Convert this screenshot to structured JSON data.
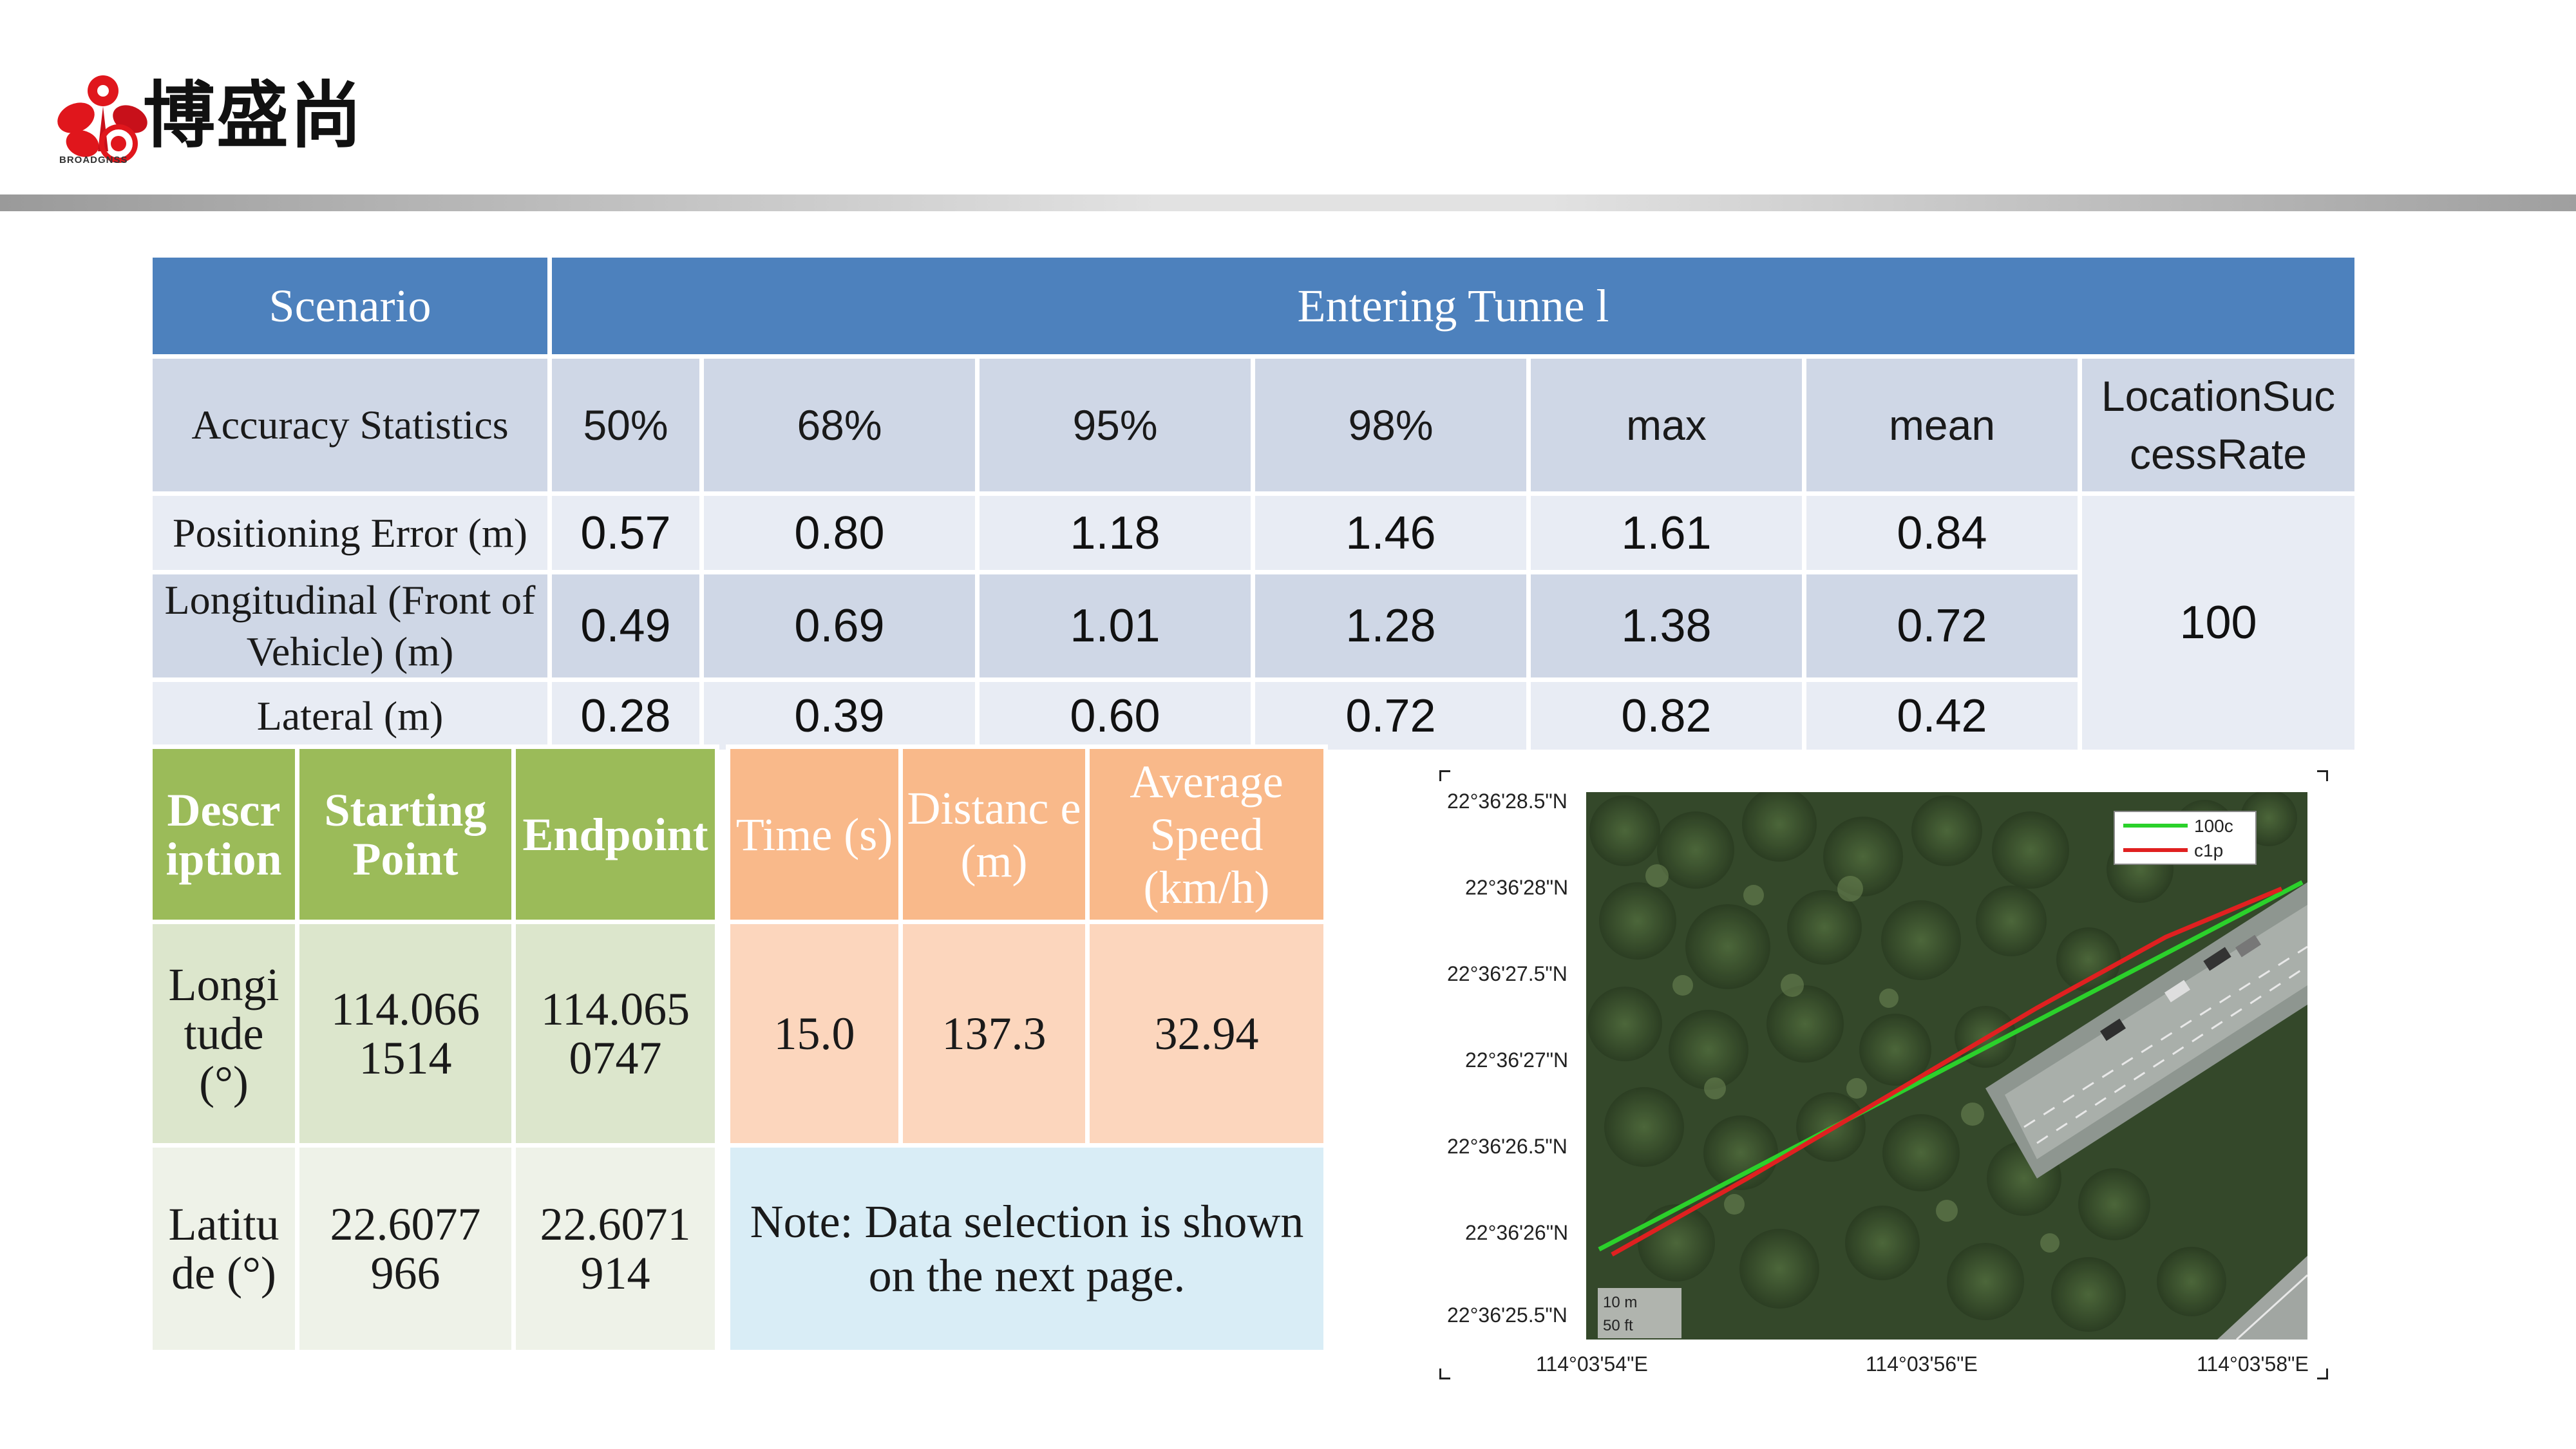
{
  "brand": {
    "name": "博盛尚",
    "sub": "BROADGNSS",
    "logo_colors": [
      "#e0161c",
      "#c8101a"
    ]
  },
  "table1": {
    "scenario_label": "Scenario",
    "scenario_value": "Entering Tunne l",
    "stats_label": "Accuracy Statistics",
    "columns": [
      "50%",
      "68%",
      "95%",
      "98%",
      "max",
      "mean",
      "LocationSuc cessRate"
    ],
    "rows": [
      {
        "label": "Positioning Error (m)",
        "values": [
          "0.57",
          "0.80",
          "1.18",
          "1.46",
          "1.61",
          "0.84"
        ]
      },
      {
        "label": "Longitudinal (Front of Vehicle) (m)",
        "values": [
          "0.49",
          "0.69",
          "1.01",
          "1.28",
          "1.38",
          "0.72"
        ]
      },
      {
        "label": "Lateral (m)",
        "values": [
          "0.28",
          "0.39",
          "0.60",
          "0.72",
          "0.82",
          "0.42"
        ]
      }
    ],
    "success_rate": "100",
    "colors": {
      "header": "#4d81bd",
      "band_dark": "#cfd7e6",
      "band_light": "#e8ecf4"
    }
  },
  "table2": {
    "headers": [
      "Descr iption",
      "Starting Point",
      "Endpoint"
    ],
    "rows": [
      {
        "label": "Longi tude (°)",
        "start": "114.066 1514",
        "end": "114.065 0747"
      },
      {
        "label": "Latitu de (°)",
        "start": "22.6077 966",
        "end": "22.6071 914"
      }
    ]
  },
  "table3": {
    "headers": [
      "Time (s)",
      "Distanc e (m)",
      "Average Speed (km/h)"
    ],
    "values": [
      "15.0",
      "137.3",
      "32.94"
    ],
    "note": "Note: Data selection is shown on the next page."
  },
  "map": {
    "legend": [
      {
        "name": "100c",
        "color": "#2bd12b"
      },
      {
        "name": "c1p",
        "color": "#e02020"
      }
    ],
    "lat_ticks": [
      "22°36'28.5\"N",
      "22°36'28\"N",
      "22°36'27.5\"N",
      "22°36'27\"N",
      "22°36'26.5\"N",
      "22°36'26\"N",
      "22°36'25.5\"N"
    ],
    "lon_ticks": [
      "114°03'54\"E",
      "114°03'56\"E",
      "114°03'58\"E"
    ],
    "scale": [
      "10 m",
      "50 ft"
    ]
  }
}
